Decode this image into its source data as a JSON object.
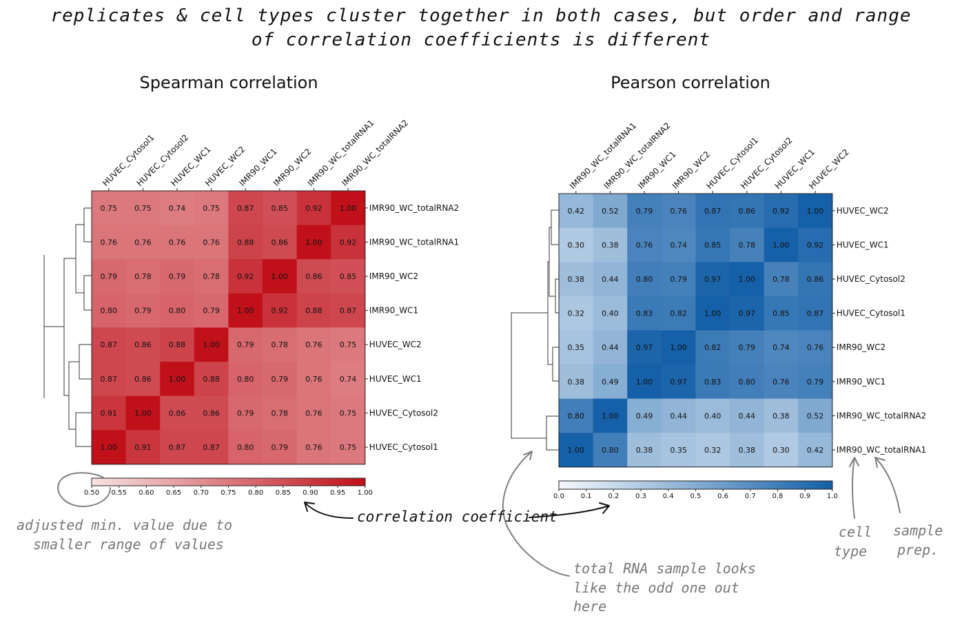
{
  "header": {
    "line1": "replicates & cell types cluster together in both cases, but order and range",
    "line2": "of correlation coefficients is different"
  },
  "annotations": {
    "adjusted_line1": "adjusted min. value due to",
    "adjusted_line2": "smaller range of values",
    "correlation_coefficient": "correlation coefficient",
    "total_rna_line1": "total RNA sample looks",
    "total_rna_line2": "like the odd one out",
    "total_rna_line3": "here",
    "cell_line1": "cell",
    "cell_line2": "type",
    "sample_line1": "sample",
    "sample_line2": "prep."
  },
  "colors": {
    "spearman_low": "#f7e1e1",
    "spearman_high": "#c0111a",
    "pearson_low": "#f4f8fc",
    "pearson_high": "#1560a8",
    "annotation_gray": "#808080"
  },
  "chart_data": [
    {
      "type": "heatmap",
      "title": "Spearman correlation",
      "col_labels": [
        "HUVEC_Cytosol1",
        "HUVEC_Cytosol2",
        "HUVEC_WC1",
        "HUVEC_WC2",
        "IMR90_WC1",
        "IMR90_WC2",
        "IMR90_WC_totalRNA1",
        "IMR90_WC_totalRNA2"
      ],
      "row_labels": [
        "IMR90_WC_totalRNA2",
        "IMR90_WC_totalRNA1",
        "IMR90_WC2",
        "IMR90_WC1",
        "HUVEC_WC2",
        "HUVEC_WC1",
        "HUVEC_Cytosol2",
        "HUVEC_Cytosol1"
      ],
      "values": [
        [
          0.75,
          0.75,
          0.74,
          0.75,
          0.87,
          0.85,
          0.92,
          1.0
        ],
        [
          0.76,
          0.76,
          0.76,
          0.76,
          0.88,
          0.86,
          1.0,
          0.92
        ],
        [
          0.79,
          0.78,
          0.79,
          0.78,
          0.92,
          1.0,
          0.86,
          0.85
        ],
        [
          0.8,
          0.79,
          0.8,
          0.79,
          1.0,
          0.92,
          0.88,
          0.87
        ],
        [
          0.87,
          0.86,
          0.88,
          1.0,
          0.79,
          0.78,
          0.76,
          0.75
        ],
        [
          0.87,
          0.86,
          1.0,
          0.88,
          0.8,
          0.79,
          0.76,
          0.74
        ],
        [
          0.91,
          1.0,
          0.86,
          0.86,
          0.79,
          0.78,
          0.76,
          0.75
        ],
        [
          1.0,
          0.91,
          0.87,
          0.87,
          0.8,
          0.79,
          0.76,
          0.75
        ]
      ],
      "vmin": 0.5,
      "vmax": 1.0,
      "colorbar_ticks": [
        "0.50",
        "0.55",
        "0.60",
        "0.65",
        "0.70",
        "0.75",
        "0.80",
        "0.85",
        "0.90",
        "0.95",
        "1.00"
      ],
      "colormap": "reds"
    },
    {
      "type": "heatmap",
      "title": "Pearson correlation",
      "col_labels": [
        "IMR90_WC_totalRNA1",
        "IMR90_WC_totalRNA2",
        "IMR90_WC1",
        "IMR90_WC2",
        "HUVEC_Cytosol1",
        "HUVEC_Cytosol2",
        "HUVEC_WC1",
        "HUVEC_WC2"
      ],
      "row_labels": [
        "HUVEC_WC2",
        "HUVEC_WC1",
        "HUVEC_Cytosol2",
        "HUVEC_Cytosol1",
        "IMR90_WC2",
        "IMR90_WC1",
        "IMR90_WC_totalRNA2",
        "IMR90_WC_totalRNA1"
      ],
      "values": [
        [
          0.42,
          0.52,
          0.79,
          0.76,
          0.87,
          0.86,
          0.92,
          1.0
        ],
        [
          0.3,
          0.38,
          0.76,
          0.74,
          0.85,
          0.78,
          1.0,
          0.92
        ],
        [
          0.38,
          0.44,
          0.8,
          0.79,
          0.97,
          1.0,
          0.78,
          0.86
        ],
        [
          0.32,
          0.4,
          0.83,
          0.82,
          1.0,
          0.97,
          0.85,
          0.87
        ],
        [
          0.35,
          0.44,
          0.97,
          1.0,
          0.82,
          0.79,
          0.74,
          0.76
        ],
        [
          0.38,
          0.49,
          1.0,
          0.97,
          0.83,
          0.8,
          0.76,
          0.79
        ],
        [
          0.8,
          1.0,
          0.49,
          0.44,
          0.4,
          0.44,
          0.38,
          0.52
        ],
        [
          1.0,
          0.8,
          0.38,
          0.35,
          0.32,
          0.38,
          0.3,
          0.42
        ]
      ],
      "vmin": 0.0,
      "vmax": 1.0,
      "colorbar_ticks": [
        "0.0",
        "0.1",
        "0.2",
        "0.3",
        "0.4",
        "0.5",
        "0.6",
        "0.7",
        "0.8",
        "0.9",
        "1.0"
      ],
      "colormap": "blues"
    }
  ]
}
